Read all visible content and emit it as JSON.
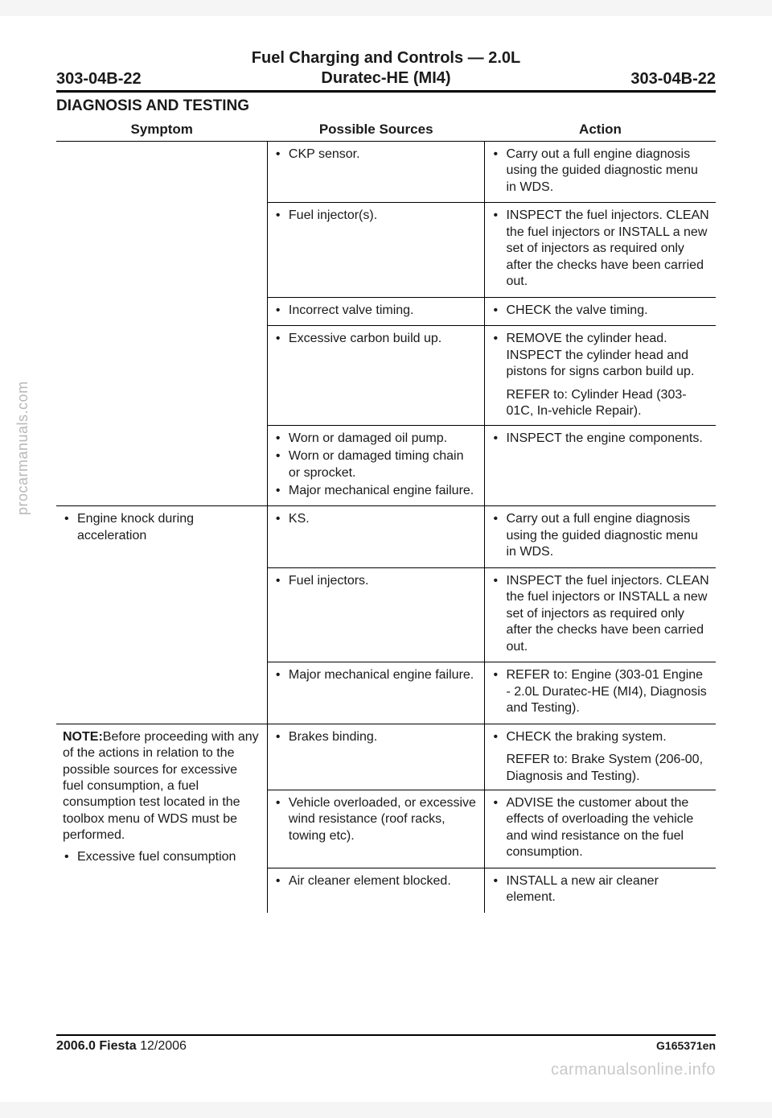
{
  "header": {
    "left": "303-04B-22",
    "center_line1": "Fuel Charging and Controls — 2.0L",
    "center_line2": "Duratec-HE (MI4)",
    "right": "303-04B-22"
  },
  "section_title": "DIAGNOSIS AND TESTING",
  "columns": {
    "symptom": "Symptom",
    "sources": "Possible Sources",
    "action": "Action"
  },
  "rows": {
    "r1_src": "CKP sensor.",
    "r1_act": "Carry out a full engine diagnosis using the guided diagnostic menu in WDS.",
    "r2_src": "Fuel injector(s).",
    "r2_act": "INSPECT the fuel injectors. CLEAN the fuel injectors or INSTALL a new set of injectors as required only after the checks have been carried out.",
    "r3_src": "Incorrect valve timing.",
    "r3_act": "CHECK the valve timing.",
    "r4_src": "Excessive carbon build up.",
    "r4_act1": "REMOVE the cylinder head. INSPECT the cylinder head and pistons for signs carbon build up.",
    "r4_act2": "REFER to: Cylinder Head (303-01C, In-vehicle Repair).",
    "r5_src1": "Worn or damaged oil pump.",
    "r5_src2": "Worn or damaged timing chain or sprocket.",
    "r5_src3": "Major mechanical engine failure.",
    "r5_act": "INSPECT the engine components.",
    "r6_sym": "Engine knock during acceleration",
    "r6_src": "KS.",
    "r6_act": "Carry out a full engine diagnosis using the guided diagnostic menu in WDS.",
    "r7_src": "Fuel injectors.",
    "r7_act": "INSPECT the fuel injectors. CLEAN the fuel injectors or INSTALL a new set of injectors as required only after the checks have been carried out.",
    "r8_src": "Major mechanical engine failure.",
    "r8_act": "REFER to: Engine (303-01 Engine - 2.0L Duratec-HE (MI4), Diagnosis and Testing).",
    "r9_note_label": "NOTE:",
    "r9_note": "Before proceeding with any of the actions in relation to the possible sources for excessive fuel consumption, a fuel consumption test located in the toolbox menu of WDS must be performed.",
    "r9_sym": "Excessive fuel consumption",
    "r9_src": "Brakes binding.",
    "r9_act1": "CHECK the braking system.",
    "r9_act2": "REFER to: Brake System (206-00, Diagnosis and Testing).",
    "r10_src": "Vehicle overloaded, or excessive wind resistance (roof racks, towing etc).",
    "r10_act": "ADVISE the customer about the effects of overloading the vehicle and wind resistance on the fuel consumption.",
    "r11_src": "Air cleaner element blocked.",
    "r11_act": "INSTALL a new air cleaner element."
  },
  "footer": {
    "left_bold": "2006.0 Fiesta",
    "left_small": " 12/2006",
    "right": "G165371en"
  },
  "sidetext": "procarmanuals.com",
  "watermark": "carmanualsonline.info"
}
